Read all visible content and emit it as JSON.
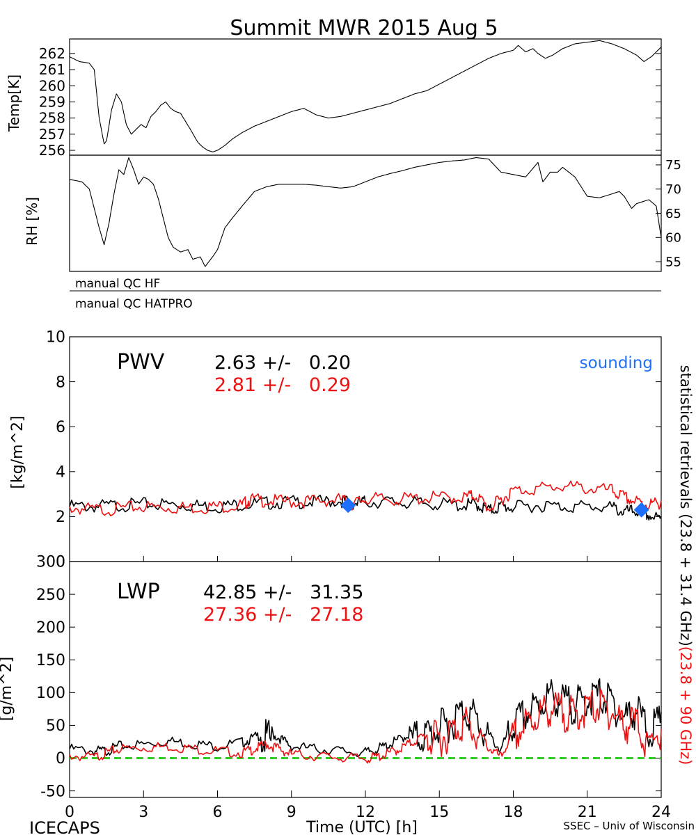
{
  "figure": {
    "title": "Summit MWR 2015 Aug  5",
    "footer_left": "ICECAPS",
    "footer_right": "SSEC – Univ of Wisconsin",
    "xlabel": "Time (UTC) [h]",
    "xticks": [
      "0",
      "3",
      "6",
      "9",
      "12",
      "15",
      "18",
      "21",
      "24"
    ],
    "qc_flags": [
      "manual QC HF",
      "manual QC HATPRO"
    ],
    "right_label_black": "statistical retrievals (23.8 + 31.4 GHz)",
    "right_label_red": "(23.8 + 90 GHz)",
    "colors": {
      "black_series": "#000000",
      "red_series": "#ee1111",
      "sounding": "#1f6fff",
      "zero_line": "#33cc22"
    }
  },
  "chart_data": [
    {
      "type": "line",
      "id": "temp",
      "ylabel": "Temp[K]",
      "ylim": [
        255.7,
        262.9
      ],
      "yticks": [
        256,
        257,
        258,
        259,
        260,
        261,
        262
      ],
      "xlim": [
        0,
        24
      ],
      "series": [
        {
          "color": "#000000",
          "x": [
            0,
            0.4,
            0.8,
            1.0,
            1.2,
            1.4,
            1.5,
            1.7,
            1.9,
            2.1,
            2.3,
            2.5,
            2.7,
            2.9,
            3.1,
            3.3,
            3.5,
            3.7,
            3.9,
            4.1,
            4.3,
            4.5,
            4.7,
            4.9,
            5.2,
            5.4,
            5.6,
            5.8,
            6.0,
            6.3,
            6.6,
            7.0,
            7.5,
            8.0,
            8.5,
            9.0,
            9.5,
            10.0,
            10.5,
            11.0,
            11.5,
            12.0,
            12.5,
            13.0,
            13.5,
            14.0,
            14.5,
            15.0,
            15.5,
            16.0,
            16.5,
            17.0,
            17.5,
            18.0,
            18.2,
            18.5,
            18.8,
            19.0,
            19.3,
            19.6,
            20.0,
            20.5,
            21.0,
            21.5,
            22.0,
            22.5,
            23.0,
            23.3,
            23.6,
            24.0
          ],
          "y": [
            261.8,
            261.5,
            261.4,
            261.0,
            258.0,
            256.4,
            256.6,
            258.5,
            259.5,
            259.0,
            257.6,
            257.0,
            257.3,
            257.6,
            257.4,
            258.1,
            258.4,
            258.8,
            259.0,
            258.6,
            258.4,
            258.3,
            257.8,
            257.3,
            256.5,
            256.2,
            256.0,
            255.9,
            256.0,
            256.3,
            256.7,
            257.1,
            257.5,
            257.8,
            258.1,
            258.4,
            258.6,
            258.2,
            258.0,
            258.1,
            258.3,
            258.5,
            258.7,
            258.9,
            259.2,
            259.5,
            259.7,
            260.1,
            260.5,
            260.9,
            261.3,
            261.7,
            262.0,
            262.2,
            262.5,
            262.1,
            262.3,
            262.0,
            261.7,
            261.9,
            262.3,
            262.6,
            262.7,
            262.8,
            262.6,
            262.3,
            261.9,
            261.5,
            261.8,
            262.4
          ]
        }
      ]
    },
    {
      "type": "line",
      "id": "rh",
      "ylabel": "RH [%]",
      "ylim": [
        53,
        77
      ],
      "yticks": [
        55,
        60,
        65,
        70,
        75
      ],
      "xlim": [
        0,
        24
      ],
      "series": [
        {
          "color": "#000000",
          "x": [
            0,
            0.5,
            0.8,
            1.0,
            1.2,
            1.4,
            1.6,
            1.8,
            2.0,
            2.2,
            2.4,
            2.6,
            2.8,
            3.0,
            3.2,
            3.4,
            3.6,
            3.8,
            4.0,
            4.2,
            4.5,
            4.8,
            5.0,
            5.3,
            5.5,
            5.8,
            6.0,
            6.3,
            6.6,
            7.0,
            7.5,
            8.0,
            8.5,
            9.0,
            9.5,
            10.0,
            10.5,
            11.0,
            11.5,
            12.0,
            12.5,
            13.0,
            13.5,
            14.0,
            14.5,
            15.0,
            15.5,
            16.0,
            16.5,
            17.0,
            17.5,
            18.0,
            18.5,
            19.0,
            19.2,
            19.5,
            19.8,
            20.0,
            20.5,
            21.0,
            21.5,
            22.0,
            22.3,
            22.5,
            22.8,
            23.0,
            23.5,
            23.8,
            24.0
          ],
          "y": [
            72,
            71.5,
            70,
            66,
            62,
            58.5,
            63,
            69,
            74,
            73,
            76.5,
            74,
            71,
            72.5,
            72,
            71,
            68,
            64,
            60,
            58,
            57,
            57.5,
            55.5,
            56,
            54,
            56,
            57.5,
            62,
            64,
            66.5,
            69.5,
            70.5,
            71,
            71,
            71,
            70.8,
            70.5,
            70.2,
            70.5,
            71.5,
            72.5,
            73.2,
            73.8,
            74.5,
            75,
            75.5,
            75.8,
            76.0,
            76.5,
            76.2,
            73.5,
            73,
            72.5,
            75.5,
            71.5,
            73.5,
            73.5,
            74.5,
            72.5,
            68.5,
            68.2,
            69.0,
            69.5,
            68.5,
            66,
            67.0,
            67.8,
            66.5,
            60
          ]
        }
      ]
    },
    {
      "type": "line",
      "id": "pwv",
      "title": "PWV",
      "ylabel": "[kg/m^2]",
      "ylim": [
        0,
        10
      ],
      "yticks": [
        0,
        2,
        4,
        6,
        8,
        10
      ],
      "xlim": [
        0,
        24
      ],
      "stats": [
        {
          "text": "2.63 +/-   0.20",
          "color": "#000000"
        },
        {
          "text": "2.81 +/-   0.29",
          "color": "#ee1111"
        }
      ],
      "legend_label": "sounding",
      "series": [
        {
          "color": "#000000",
          "x": [
            0,
            1,
            2,
            3,
            4,
            5,
            6,
            7,
            8,
            9,
            10,
            11,
            11.5,
            12,
            13,
            14,
            15,
            16,
            16.5,
            17,
            17.5,
            18,
            19,
            20,
            21,
            22,
            22.5,
            23,
            23.5,
            24
          ],
          "y": [
            2.6,
            2.6,
            2.65,
            2.7,
            2.7,
            2.65,
            2.6,
            2.7,
            2.75,
            2.8,
            2.8,
            2.85,
            2.75,
            2.8,
            2.8,
            2.75,
            2.7,
            2.65,
            2.7,
            2.4,
            2.6,
            2.55,
            2.65,
            2.6,
            2.6,
            2.55,
            2.35,
            2.4,
            2.2,
            2.0
          ]
        },
        {
          "color": "#ee1111",
          "x": [
            0,
            1,
            2,
            3,
            4,
            5,
            6,
            7,
            7.3,
            8,
            9,
            10,
            11,
            11.5,
            12,
            13,
            14,
            15,
            16,
            16.5,
            17,
            17.5,
            18,
            19,
            20,
            21,
            22,
            22.5,
            23,
            23.5,
            24
          ],
          "y": [
            2.55,
            2.45,
            2.5,
            2.6,
            2.55,
            2.55,
            2.6,
            2.65,
            2.9,
            2.85,
            2.8,
            2.85,
            2.9,
            2.7,
            2.95,
            2.9,
            2.95,
            3.0,
            3.0,
            3.1,
            2.5,
            2.9,
            3.3,
            3.4,
            3.5,
            3.4,
            3.3,
            3.0,
            2.8,
            2.7,
            2.75
          ]
        }
      ],
      "soundings": {
        "x": [
          11.3,
          23.2
        ],
        "y": [
          2.5,
          2.3
        ]
      }
    },
    {
      "type": "line",
      "id": "lwp",
      "title": "LWP",
      "ylabel": "[g/m^2]",
      "ylim": [
        -60,
        300
      ],
      "yticks": [
        -50,
        0,
        50,
        100,
        150,
        200,
        250,
        300
      ],
      "xlim": [
        0,
        24
      ],
      "stats": [
        {
          "text": "42.85 +/-   31.35",
          "color": "#000000"
        },
        {
          "text": "27.36 +/-   27.18",
          "color": "#ee1111"
        }
      ],
      "series": [
        {
          "color": "#000000",
          "x": [
            0,
            1,
            1.5,
            2,
            3,
            4,
            5,
            6,
            7,
            7.5,
            8,
            8.5,
            9,
            10,
            11,
            12,
            12.5,
            13,
            13.5,
            14,
            14.5,
            15,
            15.5,
            16,
            16.5,
            17,
            17.5,
            18,
            18.5,
            19,
            19.5,
            20,
            20.5,
            21,
            21.5,
            22,
            22.5,
            23,
            23.5,
            24
          ],
          "y": [
            18,
            15,
            15,
            22,
            25,
            30,
            26,
            22,
            28,
            35,
            45,
            35,
            22,
            18,
            15,
            12,
            18,
            25,
            35,
            45,
            50,
            60,
            70,
            90,
            75,
            40,
            15,
            65,
            80,
            95,
            110,
            100,
            95,
            105,
            110,
            100,
            75,
            90,
            55,
            70
          ]
        },
        {
          "color": "#ee1111",
          "x": [
            0,
            1,
            1.5,
            2,
            3,
            4,
            5,
            6,
            7,
            7.5,
            8,
            8.5,
            9,
            10,
            11,
            12,
            12.5,
            13,
            13.5,
            14,
            14.5,
            15,
            15.5,
            16,
            16.5,
            17,
            17.5,
            18,
            18.5,
            19,
            19.5,
            20,
            20.5,
            21,
            21.5,
            22,
            22.5,
            23,
            23.5,
            24
          ],
          "y": [
            8,
            5,
            12,
            18,
            20,
            22,
            18,
            15,
            12,
            18,
            25,
            18,
            10,
            7,
            5,
            3,
            6,
            12,
            20,
            30,
            40,
            45,
            55,
            70,
            50,
            20,
            5,
            45,
            65,
            80,
            90,
            85,
            80,
            90,
            95,
            85,
            65,
            70,
            30,
            45
          ]
        }
      ],
      "reference_line": {
        "y": 0,
        "color": "#33cc22"
      }
    }
  ]
}
